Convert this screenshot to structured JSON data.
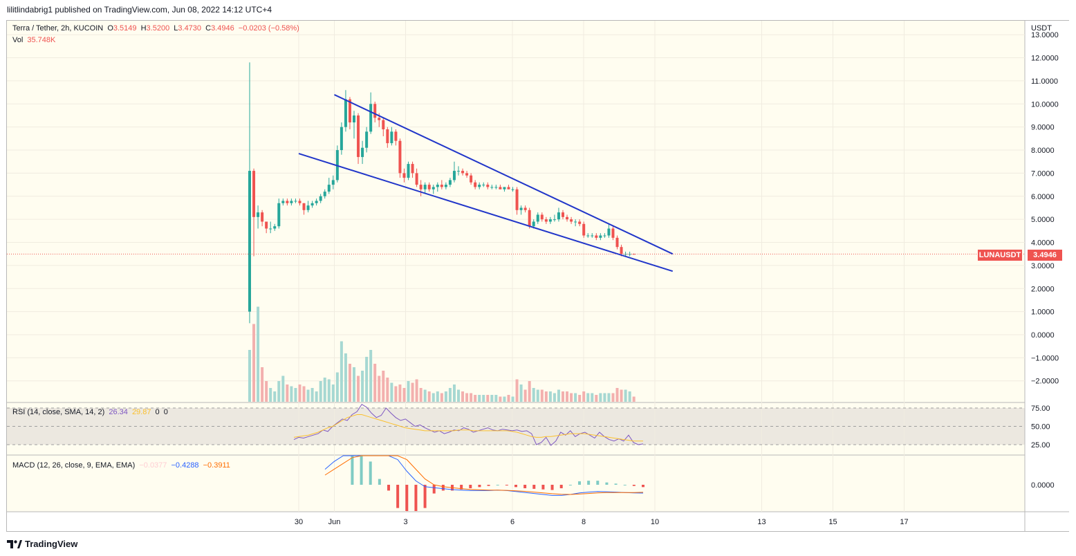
{
  "header": {
    "publish_line": "lilitlindabrig1 published on TradingView.com, Jun 08, 2022 14:12 UTC+4"
  },
  "legend": {
    "symbol": "Terra / Tether, 2h, KUCOIN",
    "o_label": "O",
    "o_value": "3.5149",
    "h_label": "H",
    "h_value": "3.5200",
    "l_label": "L",
    "l_value": "3.4730",
    "c_label": "C",
    "c_value": "3.4946",
    "change": "−0.0203 (−0.58%)",
    "vol_label": "Vol",
    "vol_value": "35.748K"
  },
  "rsi_legend": {
    "label": "RSI (14, close, SMA, 14, 2)",
    "rsi": "26.34",
    "sma": "29.87",
    "z1": "0",
    "z2": "0"
  },
  "macd_legend": {
    "label": "MACD (12, 26, close, 9, EMA, EMA)",
    "hist": "−0.0377",
    "macd": "−0.4288",
    "signal": "−0.3911"
  },
  "price_axis": {
    "currency": "USDT",
    "ticks": [
      "13.0000",
      "12.0000",
      "11.0000",
      "10.0000",
      "9.0000",
      "8.0000",
      "7.0000",
      "6.0000",
      "5.0000",
      "4.0000",
      "3.0000",
      "2.0000",
      "1.0000",
      "0.0000",
      "−1.0000",
      "−2.0000"
    ]
  },
  "rsi_axis": {
    "ticks": [
      "75.00",
      "50.00",
      "25.00"
    ]
  },
  "macd_axis": {
    "ticks": [
      "0.0000"
    ]
  },
  "time_axis": {
    "labels": [
      "30",
      "Jun",
      "3",
      "6",
      "8",
      "10",
      "13",
      "15",
      "17"
    ]
  },
  "last_price": {
    "symbol": "LUNAUSDT",
    "value": "3.4946"
  },
  "brand": "TradingView",
  "colors": {
    "up": "#26a69a",
    "down": "#ef5350",
    "trendline": "#2136c9",
    "bg": "#fffdf0"
  },
  "chart_data": {
    "type": "candlestick",
    "title": "Terra / Tether, 2h, KUCOIN",
    "ylim": [
      -2.5,
      13.0
    ],
    "trendlines": [
      {
        "name": "upper",
        "from": {
          "day": 31.0,
          "price": 10.4
        },
        "to": {
          "day": 40.5,
          "price": 3.5
        }
      },
      {
        "name": "lower",
        "from": {
          "day": 30.0,
          "price": 7.85
        },
        "to": {
          "day": 40.5,
          "price": 2.75
        }
      }
    ],
    "candles": [
      {
        "o": 1.0,
        "h": 11.8,
        "l": 0.5,
        "c": 7.1
      },
      {
        "o": 7.1,
        "h": 7.2,
        "l": 3.4,
        "c": 5.1
      },
      {
        "o": 5.1,
        "h": 5.6,
        "l": 4.6,
        "c": 5.3
      },
      {
        "o": 5.3,
        "h": 5.4,
        "l": 4.7,
        "c": 4.9
      },
      {
        "o": 4.9,
        "h": 4.9,
        "l": 4.4,
        "c": 4.6
      },
      {
        "o": 4.6,
        "h": 4.9,
        "l": 4.4,
        "c": 4.6
      },
      {
        "o": 4.6,
        "h": 4.8,
        "l": 4.5,
        "c": 4.7
      },
      {
        "o": 4.7,
        "h": 5.9,
        "l": 4.6,
        "c": 5.7
      },
      {
        "o": 5.7,
        "h": 5.9,
        "l": 5.6,
        "c": 5.8
      },
      {
        "o": 5.8,
        "h": 5.9,
        "l": 5.6,
        "c": 5.7
      },
      {
        "o": 5.7,
        "h": 5.9,
        "l": 5.6,
        "c": 5.8
      },
      {
        "o": 5.8,
        "h": 5.9,
        "l": 5.7,
        "c": 5.8
      },
      {
        "o": 5.8,
        "h": 5.9,
        "l": 5.6,
        "c": 5.7
      },
      {
        "o": 5.7,
        "h": 5.7,
        "l": 5.2,
        "c": 5.4
      },
      {
        "o": 5.4,
        "h": 5.8,
        "l": 5.3,
        "c": 5.6
      },
      {
        "o": 5.6,
        "h": 5.8,
        "l": 5.5,
        "c": 5.7
      },
      {
        "o": 5.7,
        "h": 5.9,
        "l": 5.6,
        "c": 5.8
      },
      {
        "o": 5.8,
        "h": 6.1,
        "l": 5.7,
        "c": 6.0
      },
      {
        "o": 6.0,
        "h": 6.3,
        "l": 5.9,
        "c": 6.2
      },
      {
        "o": 6.2,
        "h": 6.8,
        "l": 6.1,
        "c": 6.5
      },
      {
        "o": 6.5,
        "h": 6.9,
        "l": 6.3,
        "c": 6.7
      },
      {
        "o": 6.7,
        "h": 8.2,
        "l": 6.6,
        "c": 8.0
      },
      {
        "o": 8.0,
        "h": 9.2,
        "l": 7.8,
        "c": 9.0
      },
      {
        "o": 9.0,
        "h": 10.6,
        "l": 8.8,
        "c": 10.2
      },
      {
        "o": 10.2,
        "h": 10.3,
        "l": 8.9,
        "c": 9.2
      },
      {
        "o": 9.2,
        "h": 9.7,
        "l": 8.5,
        "c": 9.5
      },
      {
        "o": 9.5,
        "h": 9.6,
        "l": 7.4,
        "c": 7.7
      },
      {
        "o": 7.7,
        "h": 8.4,
        "l": 7.4,
        "c": 8.1
      },
      {
        "o": 8.1,
        "h": 9.0,
        "l": 7.9,
        "c": 8.8
      },
      {
        "o": 8.8,
        "h": 10.5,
        "l": 8.7,
        "c": 10.0
      },
      {
        "o": 10.0,
        "h": 10.1,
        "l": 9.2,
        "c": 9.4
      },
      {
        "o": 9.4,
        "h": 9.6,
        "l": 9.0,
        "c": 9.3
      },
      {
        "o": 9.3,
        "h": 9.4,
        "l": 8.6,
        "c": 8.9
      },
      {
        "o": 8.9,
        "h": 9.0,
        "l": 8.1,
        "c": 8.3
      },
      {
        "o": 8.3,
        "h": 9.0,
        "l": 8.2,
        "c": 8.8
      },
      {
        "o": 8.8,
        "h": 8.9,
        "l": 8.2,
        "c": 8.4
      },
      {
        "o": 8.4,
        "h": 8.5,
        "l": 6.8,
        "c": 7.0
      },
      {
        "o": 7.0,
        "h": 7.2,
        "l": 6.6,
        "c": 6.8
      },
      {
        "o": 6.8,
        "h": 7.5,
        "l": 6.7,
        "c": 7.4
      },
      {
        "o": 7.4,
        "h": 7.5,
        "l": 6.8,
        "c": 7.0
      },
      {
        "o": 7.0,
        "h": 7.2,
        "l": 6.4,
        "c": 6.5
      },
      {
        "o": 6.5,
        "h": 6.7,
        "l": 6.0,
        "c": 6.3
      },
      {
        "o": 6.3,
        "h": 6.6,
        "l": 6.1,
        "c": 6.5
      },
      {
        "o": 6.5,
        "h": 6.6,
        "l": 6.2,
        "c": 6.3
      },
      {
        "o": 6.3,
        "h": 6.5,
        "l": 6.1,
        "c": 6.4
      },
      {
        "o": 6.4,
        "h": 6.6,
        "l": 6.2,
        "c": 6.5
      },
      {
        "o": 6.5,
        "h": 6.7,
        "l": 6.3,
        "c": 6.4
      },
      {
        "o": 6.4,
        "h": 6.6,
        "l": 6.3,
        "c": 6.5
      },
      {
        "o": 6.5,
        "h": 6.8,
        "l": 6.4,
        "c": 6.7
      },
      {
        "o": 6.7,
        "h": 7.5,
        "l": 6.6,
        "c": 7.1
      },
      {
        "o": 7.1,
        "h": 7.3,
        "l": 6.9,
        "c": 7.1
      },
      {
        "o": 7.1,
        "h": 7.2,
        "l": 6.9,
        "c": 7.0
      },
      {
        "o": 7.0,
        "h": 7.1,
        "l": 6.8,
        "c": 6.9
      },
      {
        "o": 6.9,
        "h": 7.0,
        "l": 6.5,
        "c": 6.6
      },
      {
        "o": 6.6,
        "h": 6.7,
        "l": 6.3,
        "c": 6.4
      },
      {
        "o": 6.4,
        "h": 6.6,
        "l": 6.3,
        "c": 6.5
      },
      {
        "o": 6.5,
        "h": 6.6,
        "l": 6.4,
        "c": 6.5
      },
      {
        "o": 6.5,
        "h": 6.6,
        "l": 6.3,
        "c": 6.4
      },
      {
        "o": 6.4,
        "h": 6.5,
        "l": 6.3,
        "c": 6.4
      },
      {
        "o": 6.4,
        "h": 6.5,
        "l": 6.3,
        "c": 6.4
      },
      {
        "o": 6.4,
        "h": 6.5,
        "l": 6.3,
        "c": 6.3
      },
      {
        "o": 6.3,
        "h": 6.4,
        "l": 6.2,
        "c": 6.4
      },
      {
        "o": 6.4,
        "h": 6.5,
        "l": 6.3,
        "c": 6.3
      },
      {
        "o": 6.3,
        "h": 6.4,
        "l": 6.2,
        "c": 6.3
      },
      {
        "o": 6.3,
        "h": 6.4,
        "l": 5.2,
        "c": 5.4
      },
      {
        "o": 5.4,
        "h": 5.6,
        "l": 5.2,
        "c": 5.5
      },
      {
        "o": 5.5,
        "h": 5.6,
        "l": 5.3,
        "c": 5.4
      },
      {
        "o": 5.4,
        "h": 5.5,
        "l": 4.6,
        "c": 4.7
      },
      {
        "o": 4.7,
        "h": 5.0,
        "l": 4.6,
        "c": 4.9
      },
      {
        "o": 4.9,
        "h": 5.3,
        "l": 4.8,
        "c": 5.2
      },
      {
        "o": 5.2,
        "h": 5.3,
        "l": 4.9,
        "c": 5.0
      },
      {
        "o": 5.0,
        "h": 5.1,
        "l": 4.8,
        "c": 4.9
      },
      {
        "o": 4.9,
        "h": 5.1,
        "l": 4.8,
        "c": 5.0
      },
      {
        "o": 5.0,
        "h": 5.2,
        "l": 4.9,
        "c": 5.0
      },
      {
        "o": 5.0,
        "h": 5.5,
        "l": 4.9,
        "c": 5.3
      },
      {
        "o": 5.3,
        "h": 5.4,
        "l": 5.0,
        "c": 5.1
      },
      {
        "o": 5.1,
        "h": 5.2,
        "l": 4.9,
        "c": 5.0
      },
      {
        "o": 5.0,
        "h": 5.1,
        "l": 4.8,
        "c": 4.9
      },
      {
        "o": 4.9,
        "h": 5.0,
        "l": 4.7,
        "c": 4.9
      },
      {
        "o": 4.9,
        "h": 5.0,
        "l": 4.7,
        "c": 4.8
      },
      {
        "o": 4.8,
        "h": 4.9,
        "l": 4.2,
        "c": 4.3
      },
      {
        "o": 4.3,
        "h": 4.4,
        "l": 4.2,
        "c": 4.3
      },
      {
        "o": 4.3,
        "h": 4.4,
        "l": 4.2,
        "c": 4.3
      },
      {
        "o": 4.3,
        "h": 4.4,
        "l": 4.1,
        "c": 4.2
      },
      {
        "o": 4.2,
        "h": 4.4,
        "l": 4.1,
        "c": 4.3
      },
      {
        "o": 4.3,
        "h": 4.4,
        "l": 4.2,
        "c": 4.3
      },
      {
        "o": 4.3,
        "h": 4.8,
        "l": 4.2,
        "c": 4.6
      },
      {
        "o": 4.6,
        "h": 4.7,
        "l": 4.1,
        "c": 4.2
      },
      {
        "o": 4.2,
        "h": 4.3,
        "l": 3.7,
        "c": 3.8
      },
      {
        "o": 3.8,
        "h": 3.9,
        "l": 3.4,
        "c": 3.5
      },
      {
        "o": 3.5,
        "h": 3.6,
        "l": 3.4,
        "c": 3.5
      },
      {
        "o": 3.5,
        "h": 3.6,
        "l": 3.4,
        "c": 3.5
      },
      {
        "o": 3.5,
        "h": 3.52,
        "l": 3.47,
        "c": 3.49
      }
    ],
    "volume": [
      0.3,
      0.45,
      0.55,
      0.2,
      0.12,
      0.08,
      0.06,
      0.12,
      0.15,
      0.1,
      0.09,
      0.08,
      0.1,
      0.09,
      0.07,
      0.08,
      0.06,
      0.12,
      0.14,
      0.13,
      0.1,
      0.17,
      0.35,
      0.28,
      0.22,
      0.2,
      0.15,
      0.18,
      0.26,
      0.3,
      0.22,
      0.15,
      0.18,
      0.14,
      0.11,
      0.09,
      0.1,
      0.08,
      0.12,
      0.11,
      0.13,
      0.08,
      0.07,
      0.06,
      0.05,
      0.06,
      0.05,
      0.06,
      0.08,
      0.1,
      0.07,
      0.06,
      0.05,
      0.05,
      0.04,
      0.04,
      0.04,
      0.04,
      0.04,
      0.04,
      0.03,
      0.03,
      0.04,
      0.03,
      0.13,
      0.1,
      0.07,
      0.12,
      0.08,
      0.07,
      0.07,
      0.06,
      0.06,
      0.05,
      0.07,
      0.06,
      0.06,
      0.05,
      0.05,
      0.04,
      0.06,
      0.05,
      0.05,
      0.04,
      0.05,
      0.05,
      0.05,
      0.05,
      0.08,
      0.07,
      0.07,
      0.06,
      0.03
    ],
    "rsi": [
      32,
      35,
      34,
      36,
      38,
      40,
      45,
      43,
      50,
      55,
      60,
      58,
      66,
      70,
      80,
      76,
      68,
      62,
      65,
      75,
      68,
      62,
      58,
      60,
      55,
      50,
      52,
      48,
      45,
      42,
      44,
      40,
      42,
      45,
      44,
      48,
      46,
      42,
      44,
      46,
      48,
      45,
      44,
      46,
      45,
      44,
      45,
      43,
      44,
      40,
      25,
      28,
      35,
      24,
      30,
      42,
      38,
      44,
      36,
      40,
      42,
      38,
      34,
      42,
      36,
      32,
      30,
      33,
      30,
      38,
      28,
      25,
      26
    ],
    "rsi_sma": [
      35,
      36,
      37,
      38,
      40,
      42,
      45,
      48,
      50,
      54,
      58,
      62,
      64,
      66,
      66,
      64,
      62,
      60,
      58,
      56,
      54,
      52,
      50,
      48,
      47,
      46,
      45,
      44,
      44,
      44,
      44,
      44,
      44,
      44,
      45,
      45,
      45,
      44,
      44,
      44,
      44,
      44,
      44,
      44,
      44,
      43,
      42,
      40,
      38,
      36,
      35,
      35,
      36,
      36,
      37,
      38,
      39,
      40,
      40,
      40,
      40,
      39,
      38,
      37,
      36,
      35,
      34,
      33,
      32,
      31,
      30,
      30,
      30
    ],
    "macd": [
      0.8,
      1.2,
      1.6,
      2.0,
      2.4,
      2.3,
      2.1,
      1.8,
      1.3,
      0.7,
      0.2,
      -0.1,
      -0.15,
      -0.2,
      -0.25,
      -0.28,
      -0.3,
      -0.3,
      -0.3,
      -0.28,
      -0.3,
      -0.35,
      -0.4,
      -0.45,
      -0.5,
      -0.55,
      -0.55,
      -0.5,
      -0.42,
      -0.38,
      -0.35,
      -0.36,
      -0.38,
      -0.4,
      -0.42,
      -0.43
    ],
    "macd_signal": [
      0.5,
      0.8,
      1.1,
      1.4,
      1.7,
      1.9,
      2.0,
      1.9,
      1.7,
      1.3,
      0.8,
      0.3,
      0.0,
      -0.1,
      -0.15,
      -0.2,
      -0.24,
      -0.26,
      -0.28,
      -0.28,
      -0.29,
      -0.31,
      -0.34,
      -0.38,
      -0.42,
      -0.46,
      -0.49,
      -0.5,
      -0.48,
      -0.45,
      -0.42,
      -0.4,
      -0.4,
      -0.4,
      -0.4,
      -0.39
    ]
  }
}
